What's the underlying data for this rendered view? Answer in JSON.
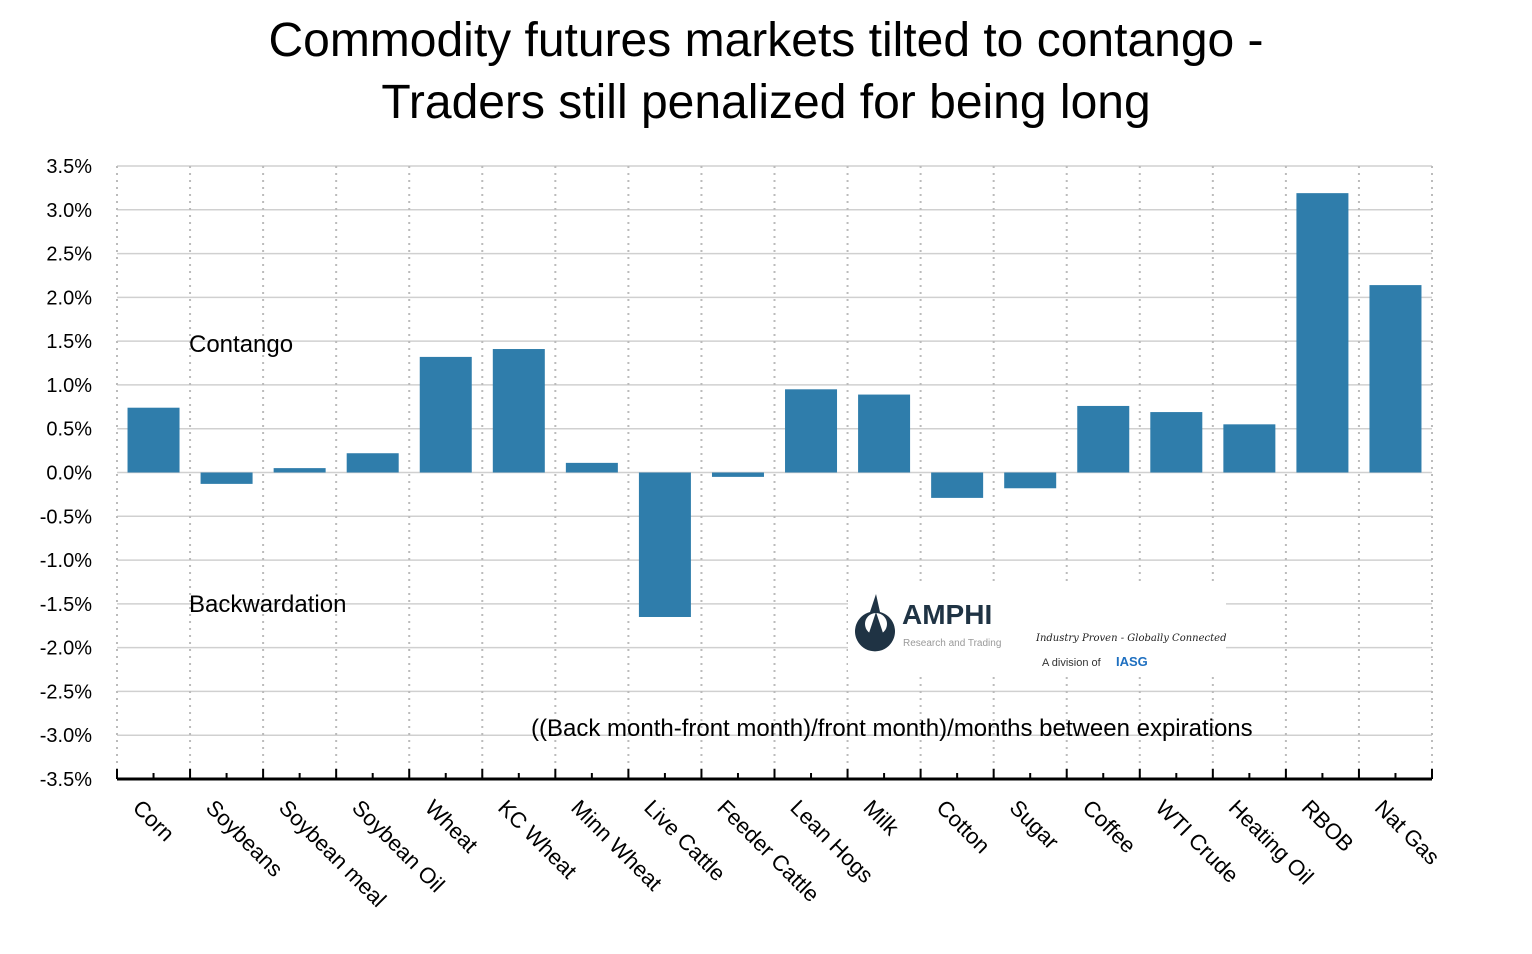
{
  "chart_data": {
    "type": "bar",
    "title": "Commodity futures markets tilted to contango - Traders still penalized for being long",
    "title_lines": [
      "Commodity futures markets tilted to contango -",
      "Traders still penalized for being long"
    ],
    "categories": [
      "Corn",
      "Soybeans",
      "Soybean meal",
      "Soybean Oil",
      "Wheat",
      "KC Wheat",
      "Minn Wheat",
      "Live Cattle",
      "Feeder Cattle",
      "Lean Hogs",
      "Milk",
      "Cotton",
      "Sugar",
      "Coffee",
      "WTI Crude",
      "Heating Oil",
      "RBOB",
      "Nat Gas"
    ],
    "values": [
      0.74,
      -0.13,
      0.05,
      0.22,
      1.32,
      1.41,
      0.11,
      -1.65,
      -0.05,
      0.95,
      0.89,
      -0.29,
      -0.18,
      0.76,
      0.69,
      0.55,
      3.19,
      2.14
    ],
    "unit": "%",
    "ylim": [
      -3.5,
      3.5
    ],
    "yticks": [
      "3.5%",
      "3.0%",
      "2.5%",
      "2.0%",
      "1.5%",
      "1.0%",
      "0.5%",
      "0.0%",
      "-0.5%",
      "-1.0%",
      "-1.5%",
      "-2.0%",
      "-2.5%",
      "-3.0%",
      "-3.5%"
    ],
    "grid": true,
    "bar_color": "#2f7dab",
    "annotations": {
      "contango": "Contango",
      "backwardation": "Backwardation",
      "formula": "((Back month-front month)/front month)/months between expirations"
    }
  },
  "logo": {
    "name": "AMPHI",
    "sub": "Research and Trading",
    "tagline": "Industry Proven - Globally Connected",
    "division": "A division of",
    "parent": "IASG"
  }
}
